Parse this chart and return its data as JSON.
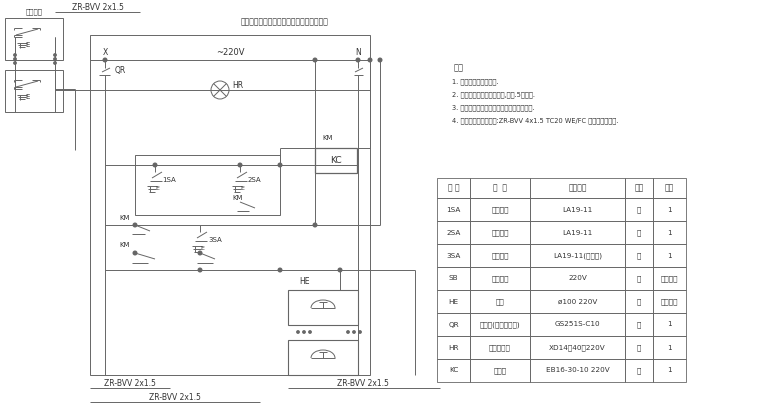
{
  "bg_color": "#ffffff",
  "line_color": "#666666",
  "text_color": "#333333",
  "notes_title": "备注",
  "notes": [
    "1. 当起火灯报警时开起.",
    "2. 控制器安在消防控制箱内,距地.5米处分.",
    "3. 消防报警器符合每个消火标志删按组一个.",
    "4. 当枬及消防配线采用:ZR-BVV 4x1.5 TC20 WE/FC 标注消防舍弹法."
  ],
  "table_headers": [
    "符 号",
    "名  称",
    "型号规格",
    "单位",
    "数量"
  ],
  "table_rows": [
    [
      "1SA",
      "停止按键",
      "LA19-11",
      "个",
      "1"
    ],
    [
      "2SA",
      "启动按键",
      "LA19-11",
      "个",
      "1"
    ],
    [
      "3SA",
      "消音按键",
      "LA19-11(自复位)",
      "个",
      "1"
    ],
    [
      "SB",
      "消防按组",
      "220V",
      "个",
      "同消火栎"
    ],
    [
      "HE",
      "警铃",
      "ø100 220V",
      "个",
      "同消火栎"
    ],
    [
      "QR",
      "断路器(保温电保护)",
      "GS251S-C10",
      "个",
      "1"
    ],
    [
      "HR",
      "电源信号灯",
      "XD14（40）220V",
      "个",
      "1"
    ],
    [
      "KC",
      "接触器",
      "EB16-30-10 220V",
      "个",
      "1"
    ]
  ],
  "title_top": "警门、报警、检测）信号灯及控制门上安装"
}
